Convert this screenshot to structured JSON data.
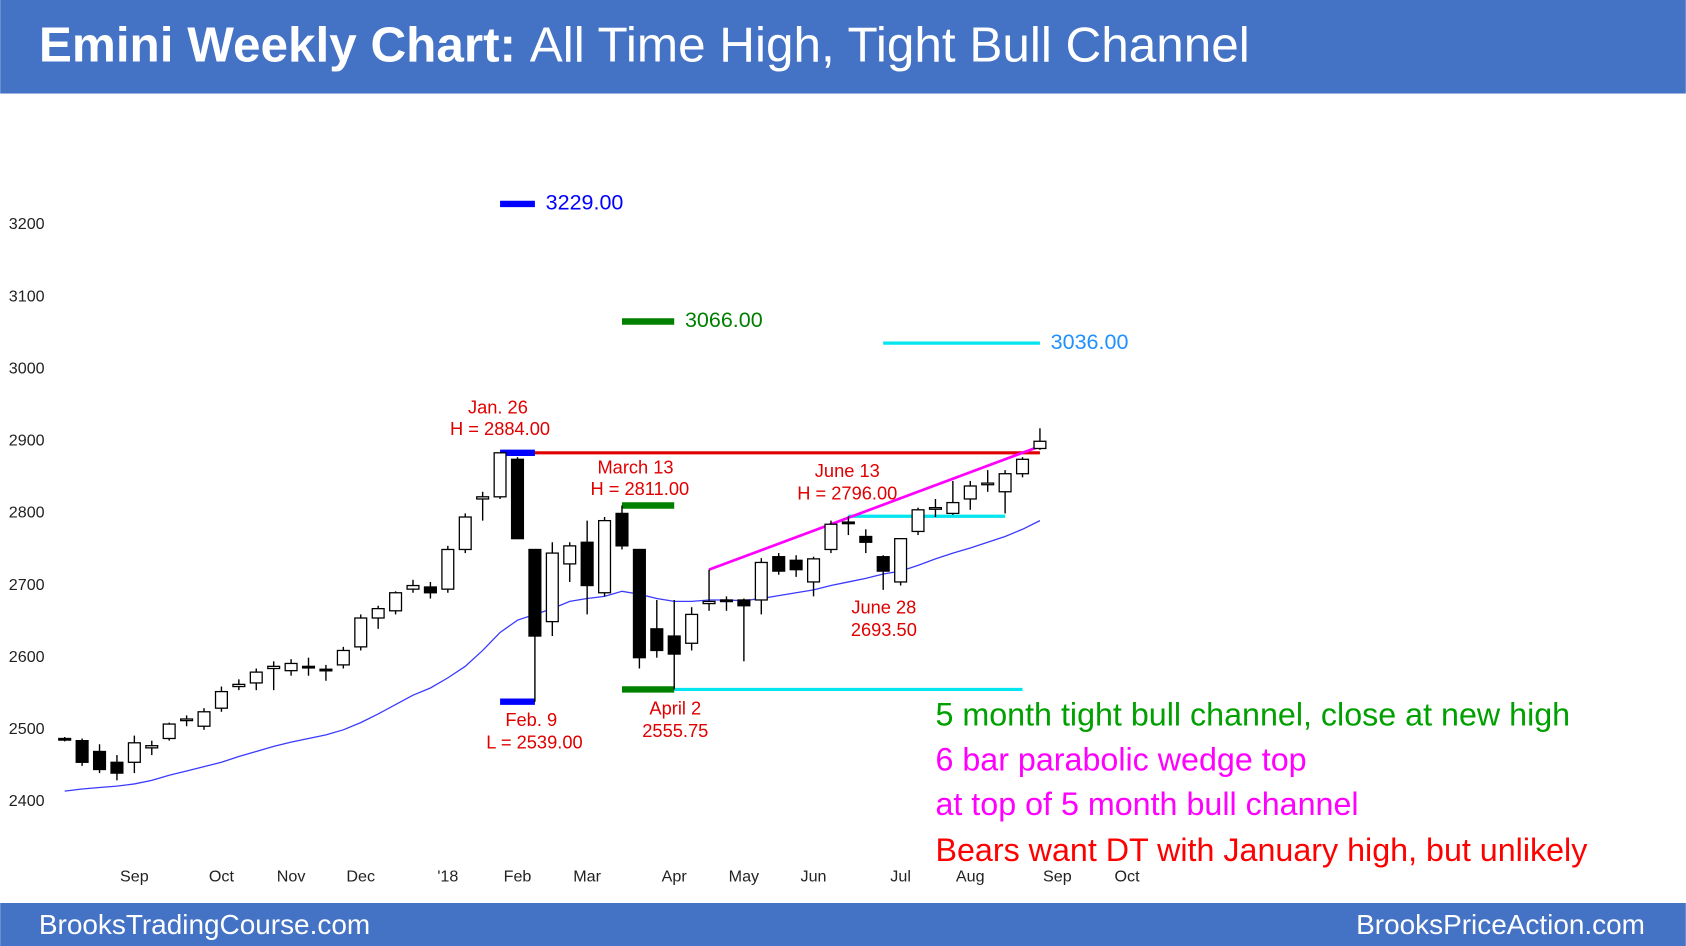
{
  "header": {
    "title_bold": "Emini Weekly Chart:",
    "title_rest": "All Time High, Tight Bull Channel"
  },
  "footer": {
    "left": "BrooksTradingCourse.com",
    "right": "BrooksPriceAction.com"
  },
  "chart_data": {
    "type": "candlestick",
    "categories": [
      null,
      null,
      null,
      null,
      "Sep",
      null,
      null,
      null,
      null,
      "Oct",
      null,
      null,
      null,
      "Nov",
      null,
      null,
      null,
      "Dec",
      null,
      null,
      null,
      null,
      "'18",
      null,
      null,
      null,
      "Feb",
      null,
      null,
      null,
      "Mar",
      null,
      null,
      null,
      null,
      "Apr",
      null,
      null,
      null,
      "May",
      null,
      null,
      null,
      "Jun",
      null,
      null,
      null,
      null,
      "Jul",
      null,
      null,
      null,
      "Aug",
      null,
      null,
      null,
      null,
      "Sep",
      null,
      null,
      null,
      "Oct"
    ],
    "open": [
      2488,
      2485,
      2470,
      2455,
      2455,
      2475,
      2488,
      2513,
      2505,
      2530,
      2560,
      2565,
      2585,
      2582,
      2588,
      2584,
      2590,
      2615,
      2655,
      2665,
      2695,
      2698,
      2695,
      2750,
      2820,
      2823,
      2875,
      2750,
      2650,
      2730,
      2760,
      2690,
      2800,
      2750,
      2640,
      2630,
      2620,
      2675,
      2680,
      2680,
      2680,
      2740,
      2735,
      2705,
      2750,
      2788,
      2768,
      2740,
      2705,
      2775,
      2807,
      2800,
      2820,
      2840,
      2830,
      2855,
      2890,
      null,
      null,
      null,
      null,
      null
    ],
    "high": [
      2490,
      2488,
      2480,
      2465,
      2492,
      2485,
      2510,
      2520,
      2530,
      2560,
      2570,
      2585,
      2595,
      2598,
      2600,
      2590,
      2615,
      2660,
      2672,
      2692,
      2708,
      2705,
      2755,
      2800,
      2830,
      2884,
      2878,
      2750,
      2760,
      2760,
      2790,
      2795,
      2811,
      2750,
      2680,
      2680,
      2670,
      2722,
      2685,
      2682,
      2738,
      2745,
      2742,
      2740,
      2790,
      2796,
      2778,
      2742,
      2765,
      2808,
      2820,
      2845,
      2845,
      2860,
      2860,
      2878,
      2918,
      null,
      null,
      null,
      null,
      null
    ],
    "low": [
      2484,
      2450,
      2440,
      2430,
      2440,
      2465,
      2485,
      2505,
      2500,
      2525,
      2555,
      2555,
      2555,
      2575,
      2575,
      2568,
      2585,
      2610,
      2640,
      2660,
      2690,
      2682,
      2690,
      2745,
      2790,
      2820,
      2765,
      2539,
      2630,
      2705,
      2660,
      2685,
      2750,
      2585,
      2600,
      2556,
      2610,
      2665,
      2665,
      2595,
      2660,
      2715,
      2712,
      2685,
      2745,
      2770,
      2745,
      2694,
      2700,
      2770,
      2795,
      2798,
      2805,
      2830,
      2800,
      2850,
      2888,
      null,
      null,
      null,
      null,
      null
    ],
    "close": [
      2486,
      2455,
      2445,
      2440,
      2482,
      2478,
      2508,
      2515,
      2525,
      2553,
      2563,
      2580,
      2588,
      2592,
      2586,
      2582,
      2610,
      2655,
      2668,
      2690,
      2700,
      2690,
      2750,
      2795,
      2823,
      2884,
      2765,
      2630,
      2745,
      2755,
      2700,
      2790,
      2755,
      2600,
      2610,
      2605,
      2660,
      2678,
      2678,
      2672,
      2732,
      2720,
      2722,
      2737,
      2785,
      2786,
      2760,
      2720,
      2765,
      2805,
      2808,
      2815,
      2838,
      2842,
      2855,
      2875,
      2900,
      null,
      null,
      null,
      null,
      null
    ],
    "ma_color": "#3a3aff",
    "ma": [
      2415,
      2418,
      2420,
      2422,
      2425,
      2430,
      2437,
      2443,
      2449,
      2455,
      2463,
      2470,
      2477,
      2483,
      2488,
      2493,
      2500,
      2510,
      2522,
      2535,
      2548,
      2558,
      2572,
      2588,
      2610,
      2635,
      2652,
      2660,
      2668,
      2678,
      2682,
      2685,
      2692,
      2688,
      2682,
      2678,
      2678,
      2680,
      2680,
      2679,
      2682,
      2686,
      2690,
      2694,
      2700,
      2705,
      2710,
      2716,
      2720,
      2728,
      2737,
      2745,
      2752,
      2760,
      2768,
      2778,
      2790,
      null,
      null,
      null,
      null,
      null
    ],
    "ylim": [
      2320,
      3350
    ],
    "yticks": [
      2400,
      2500,
      2600,
      2700,
      2800,
      2900,
      3000,
      3100,
      3200
    ],
    "levels": [
      {
        "value": 3229,
        "label": "3229.00",
        "color": "#0000ff",
        "label_color": "#0000ff",
        "start": 25,
        "end": 27
      },
      {
        "value": 3066,
        "label": "3066.00",
        "color": "#008000",
        "label_color": "#008000",
        "start": 32,
        "end": 35
      },
      {
        "value": 3036,
        "label": "3036.00",
        "color": "#00e5ee",
        "label_color": "#1e90ff",
        "start": 47,
        "end": 56
      },
      {
        "value": 2884,
        "color": "#e00000",
        "start": 25,
        "end": 56
      },
      {
        "value": 2884,
        "color": "#0000ff",
        "start": 25,
        "end": 27
      },
      {
        "value": 2539,
        "color": "#0000ff",
        "start": 25,
        "end": 27
      },
      {
        "value": 2811,
        "color": "#008000",
        "start": 32,
        "end": 35
      },
      {
        "value": 2556,
        "color": "#008000",
        "start": 32,
        "end": 35
      },
      {
        "value": 2556,
        "color": "#00e5ee",
        "start": 35,
        "end": 55
      },
      {
        "value": 2796,
        "color": "#00e5ee",
        "start": 45,
        "end": 54
      }
    ],
    "trendline": {
      "color": "#ff00ff",
      "start": 37,
      "end": 56,
      "values": [
        2722,
        2893
      ]
    },
    "annotations": [
      "Jan. 26",
      "H = 2884.00",
      "Feb. 9",
      "L = 2539.00",
      "March 13",
      "H = 2811.00",
      "April 2",
      "2555.75",
      "June 13",
      "H = 2796.00",
      "June 28",
      "2693.50"
    ],
    "notes": [
      {
        "text": "5 month tight bull channel, close at new high",
        "color": "#00a000"
      },
      {
        "text": "6 bar parabolic wedge top",
        "color": "#ff00ff"
      },
      {
        "text": "at top of 5 month bull channel",
        "color": "#ff00ff"
      },
      {
        "text": "Bears want DT with January high, but unlikely",
        "color": "#ff0000"
      }
    ]
  }
}
